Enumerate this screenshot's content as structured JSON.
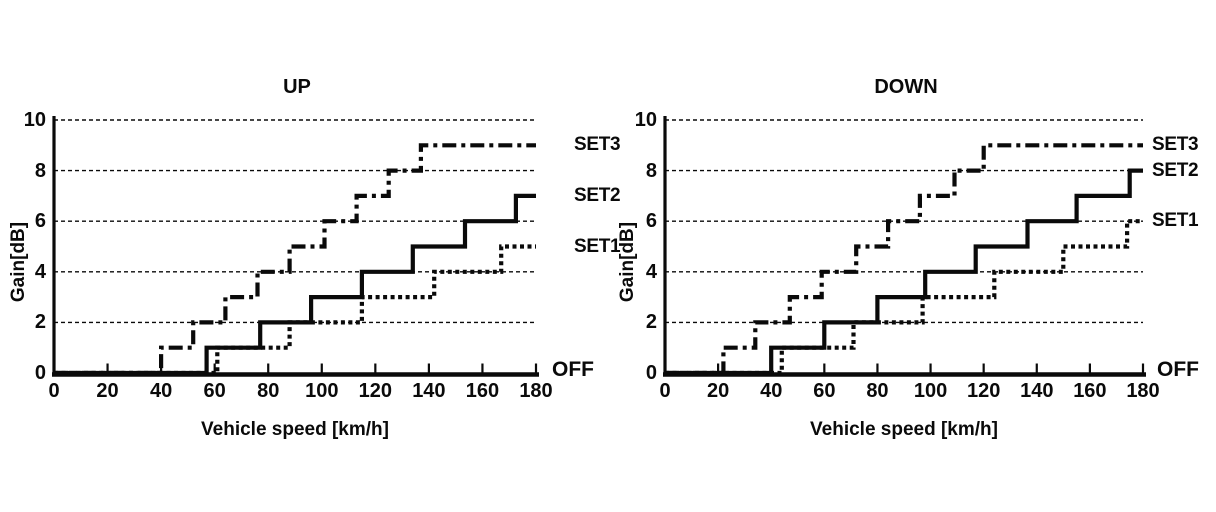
{
  "figure": {
    "background": "#ffffff",
    "ink_color": "#0a0a0a",
    "description_titles": [
      "UP",
      "DOWN"
    ]
  },
  "chart_data": [
    {
      "type": "line",
      "subtype": "step",
      "title": "UP",
      "xlabel": "Vehicle speed [km/h]",
      "ylabel": "Gain[dB]",
      "off_label": "OFF",
      "xlim": [
        0,
        180
      ],
      "ylim": [
        0,
        10
      ],
      "x_ticks": [
        0,
        20,
        40,
        60,
        80,
        100,
        120,
        140,
        160,
        180
      ],
      "y_ticks": [
        0,
        2,
        4,
        6,
        8,
        10
      ],
      "grid_y": [
        2,
        4,
        6,
        8,
        10
      ],
      "grid_style": "dashed",
      "legend_position": "right-of-plot",
      "series": [
        {
          "name": "SET3",
          "style": "dash-dot",
          "start_gain": 0,
          "final_gain": 9,
          "step_up_speeds": [
            40,
            52,
            64,
            76,
            88,
            101,
            113,
            125,
            137
          ],
          "gains_after_step": [
            1,
            2,
            3,
            4,
            5,
            6,
            7,
            8,
            9
          ]
        },
        {
          "name": "SET2",
          "style": "solid",
          "start_gain": 0,
          "final_gain": 7,
          "step_up_speeds": [
            57,
            77,
            96,
            115,
            134,
            153.5,
            172.5
          ],
          "gains_after_step": [
            1,
            2,
            3,
            4,
            5,
            6,
            7
          ]
        },
        {
          "name": "SET1",
          "style": "dotted",
          "start_gain": 0,
          "final_gain": 5,
          "step_up_speeds": [
            61,
            88,
            115,
            142,
            167
          ],
          "gains_after_step": [
            1,
            2,
            3,
            4,
            5
          ]
        }
      ]
    },
    {
      "type": "line",
      "subtype": "step",
      "title": "DOWN",
      "xlabel": "Vehicle speed [km/h]",
      "ylabel": "Gain[dB]",
      "off_label": "OFF",
      "xlim": [
        0,
        180
      ],
      "ylim": [
        0,
        10
      ],
      "x_ticks": [
        0,
        20,
        40,
        60,
        80,
        100,
        120,
        140,
        160,
        180
      ],
      "y_ticks": [
        0,
        2,
        4,
        6,
        8,
        10
      ],
      "grid_y": [
        2,
        4,
        6,
        8,
        10
      ],
      "grid_style": "dashed",
      "legend_position": "right-of-plot",
      "series": [
        {
          "name": "SET3",
          "style": "dash-dot",
          "start_gain": 0,
          "final_gain": 9,
          "step_up_speeds": [
            22,
            34,
            47,
            59,
            72,
            84,
            96,
            109,
            120
          ],
          "gains_after_step": [
            1,
            2,
            3,
            4,
            5,
            6,
            7,
            8,
            9
          ]
        },
        {
          "name": "SET2",
          "style": "solid",
          "start_gain": 0,
          "final_gain": 8,
          "step_up_speeds": [
            40,
            60,
            80,
            98,
            117,
            136.5,
            155,
            175
          ],
          "gains_after_step": [
            1,
            2,
            3,
            4,
            5,
            6,
            7,
            8
          ]
        },
        {
          "name": "SET1",
          "style": "dotted",
          "start_gain": 0,
          "final_gain": 6,
          "step_up_speeds": [
            44,
            71,
            97,
            124,
            150,
            174
          ],
          "gains_after_step": [
            1,
            2,
            3,
            4,
            5,
            6
          ]
        }
      ]
    }
  ]
}
